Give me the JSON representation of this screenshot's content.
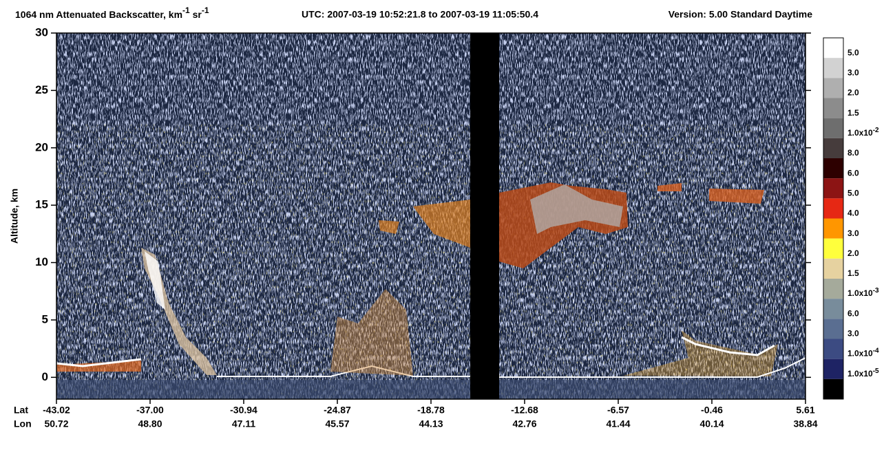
{
  "chart_data": {
    "type": "lidar_curtain",
    "title_parts": [
      "1064 nm Attenuated Backscatter, km",
      "-1",
      " sr",
      "-1"
    ],
    "time_range": "UTC:  2007-03-19 10:52:21.8  to  2007-03-19 11:05:50.4",
    "version": "Version: 5.00  Standard  Daytime",
    "ylabel": "Altitude, km",
    "ylim": [
      -1.9,
      30
    ],
    "yticks": [
      0,
      5,
      10,
      15,
      20,
      25,
      30
    ],
    "lat_label": "Lat",
    "lon_label": "Lon",
    "lat": [
      "-43.02",
      "-37.00",
      "-30.94",
      "-24.87",
      "-18.78",
      "-12.68",
      "-6.57",
      "-0.46",
      "5.61"
    ],
    "lon": [
      "50.72",
      "48.80",
      "47.11",
      "45.57",
      "44.13",
      "42.76",
      "41.44",
      "40.14",
      "38.84"
    ],
    "colorbar": {
      "colors": [
        "#ffffff",
        "#d2d2d2",
        "#afafaf",
        "#8c8c8c",
        "#6e6e6e",
        "#463c3c",
        "#2d0000",
        "#8c1414",
        "#e62814",
        "#ff9600",
        "#ffff3c",
        "#e6d2a0",
        "#a5aa9b",
        "#788c9b",
        "#5a6e91",
        "#3c4b82",
        "#1e2364",
        "#000000"
      ],
      "labels": [
        "5.0",
        "3.0",
        "2.0",
        "1.5",
        {
          "text": "1.0x10",
          "sup": "-2"
        },
        "8.0",
        "6.0",
        "5.0",
        "4.0",
        "3.0",
        "2.0",
        "1.5",
        {
          "text": "1.0x10",
          "sup": "-3"
        },
        "6.0",
        "3.0",
        {
          "text": "1.0x10",
          "sup": "-4"
        },
        {
          "text": "1.0x10",
          "sup": "-5"
        }
      ]
    }
  }
}
